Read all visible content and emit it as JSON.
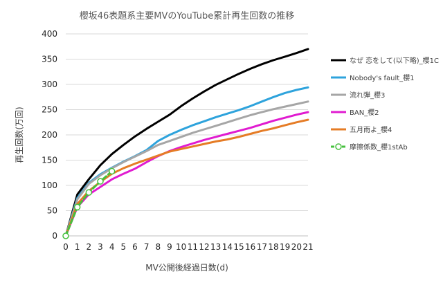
{
  "chart_data": {
    "type": "line",
    "title": "櫻坂46表題系主要MVのYouTube累計再生回数の推移",
    "xlabel": "MV公開後経過日数(d)",
    "ylabel": "再生回数(万回)",
    "xlim": [
      0,
      21
    ],
    "ylim": [
      0,
      400
    ],
    "x_ticks": [
      "0",
      "1",
      "2",
      "3",
      "4",
      "5",
      "6",
      "7",
      "8",
      "9",
      "10",
      "11",
      "12",
      "13",
      "14",
      "15",
      "16",
      "17",
      "18",
      "19",
      "20",
      "21"
    ],
    "y_ticks": [
      "0",
      "50",
      "100",
      "150",
      "200",
      "250",
      "300",
      "350",
      "400"
    ],
    "grid": "horizontal",
    "legend_position": "right",
    "series": [
      {
        "name": "なぜ 恋をして(以下略)_櫻1C",
        "color": "#000000",
        "marker": false,
        "x": [
          0,
          1,
          2,
          3,
          4,
          5,
          6,
          7,
          8,
          9,
          10,
          11,
          12,
          13,
          14,
          15,
          16,
          17,
          18,
          19,
          20,
          21
        ],
        "y": [
          0,
          82,
          112,
          140,
          162,
          180,
          197,
          212,
          226,
          240,
          257,
          272,
          286,
          299,
          310,
          321,
          331,
          340,
          348,
          355,
          362,
          370
        ]
      },
      {
        "name": "Nobody's fault_櫻1",
        "color": "#2ea3dc",
        "marker": false,
        "x": [
          0,
          1,
          2,
          3,
          4,
          5,
          6,
          7,
          8,
          9,
          10,
          11,
          12,
          13,
          14,
          15,
          16,
          17,
          18,
          19,
          20,
          21
        ],
        "y": [
          0,
          75,
          105,
          122,
          135,
          147,
          158,
          170,
          188,
          200,
          210,
          219,
          227,
          235,
          242,
          249,
          257,
          266,
          275,
          283,
          289,
          294
        ]
      },
      {
        "name": "流れ弾_櫻3",
        "color": "#a6a6a6",
        "marker": false,
        "x": [
          0,
          1,
          2,
          3,
          4,
          5,
          6,
          7,
          8,
          9,
          10,
          11,
          12,
          13,
          14,
          15,
          16,
          17,
          18,
          19,
          20,
          21
        ],
        "y": [
          0,
          72,
          103,
          120,
          134,
          146,
          157,
          168,
          180,
          188,
          196,
          204,
          211,
          218,
          225,
          232,
          239,
          245,
          251,
          256,
          261,
          266
        ]
      },
      {
        "name": "BAN_櫻2",
        "color": "#e01bd0",
        "marker": false,
        "x": [
          0,
          1,
          2,
          3,
          4,
          5,
          6,
          7,
          8,
          9,
          10,
          11,
          12,
          13,
          14,
          15,
          16,
          17,
          18,
          19,
          20,
          21
        ],
        "y": [
          0,
          57,
          82,
          97,
          112,
          123,
          133,
          146,
          158,
          168,
          176,
          183,
          190,
          196,
          202,
          208,
          214,
          221,
          228,
          234,
          240,
          245
        ]
      },
      {
        "name": "五月雨よ_櫻4",
        "color": "#e57c26",
        "marker": false,
        "x": [
          0,
          1,
          2,
          3,
          4,
          5,
          6,
          7,
          8,
          9,
          10,
          11,
          12,
          13,
          14,
          15,
          16,
          17,
          18,
          19,
          20,
          21
        ],
        "y": [
          0,
          63,
          89,
          107,
          123,
          134,
          143,
          151,
          159,
          167,
          172,
          177,
          182,
          187,
          191,
          196,
          202,
          208,
          213,
          219,
          225,
          230
        ]
      },
      {
        "name": "摩擦係数_櫻1stAb",
        "color": "#46c03d",
        "marker": true,
        "dashed": true,
        "x": [
          0,
          1,
          2,
          3,
          4
        ],
        "y": [
          0,
          57,
          86,
          108,
          128
        ]
      }
    ]
  }
}
